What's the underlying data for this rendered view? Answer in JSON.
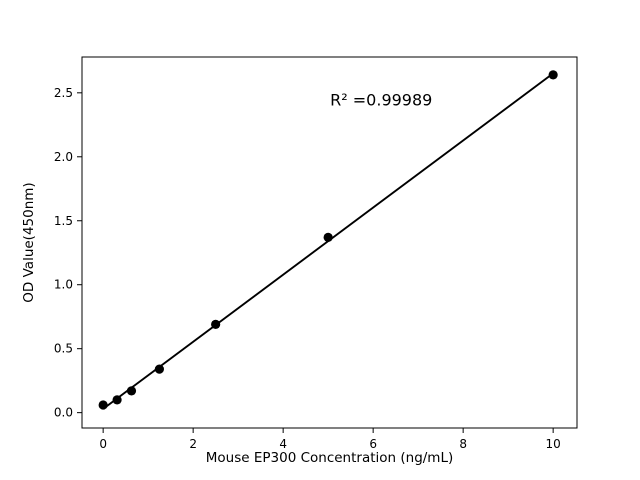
{
  "figure": {
    "background": "#ffffff",
    "foreground": "#000000"
  },
  "chart_data": {
    "type": "scatter",
    "title": "",
    "xlabel": "Mouse EP300 Concentration (ng/mL)",
    "ylabel": "OD Value(450nm)",
    "x": [
      0,
      0.31,
      0.63,
      1.25,
      2.5,
      5,
      10
    ],
    "y": [
      0.06,
      0.1,
      0.17,
      0.34,
      0.69,
      1.37,
      2.64
    ],
    "trendline": true,
    "grid": false,
    "legend": "none",
    "xlim": [
      -0.47,
      10.53
    ],
    "ylim": [
      -0.12,
      2.78
    ],
    "xticks": [
      0,
      2,
      4,
      6,
      8,
      10
    ],
    "xtick_labels": [
      "0",
      "2",
      "4",
      "6",
      "8",
      "10"
    ],
    "yticks": [
      0.0,
      0.5,
      1.0,
      1.5,
      2.0,
      2.5
    ],
    "ytick_labels": [
      "0.0",
      "0.5",
      "1.0",
      "1.5",
      "2.0",
      "2.5"
    ],
    "annotation": {
      "text": "R² =0.99989",
      "x": 6.18,
      "y": 2.44
    },
    "marker_color": "#000000",
    "line_color": "#000000",
    "axis_color": "#000000"
  }
}
